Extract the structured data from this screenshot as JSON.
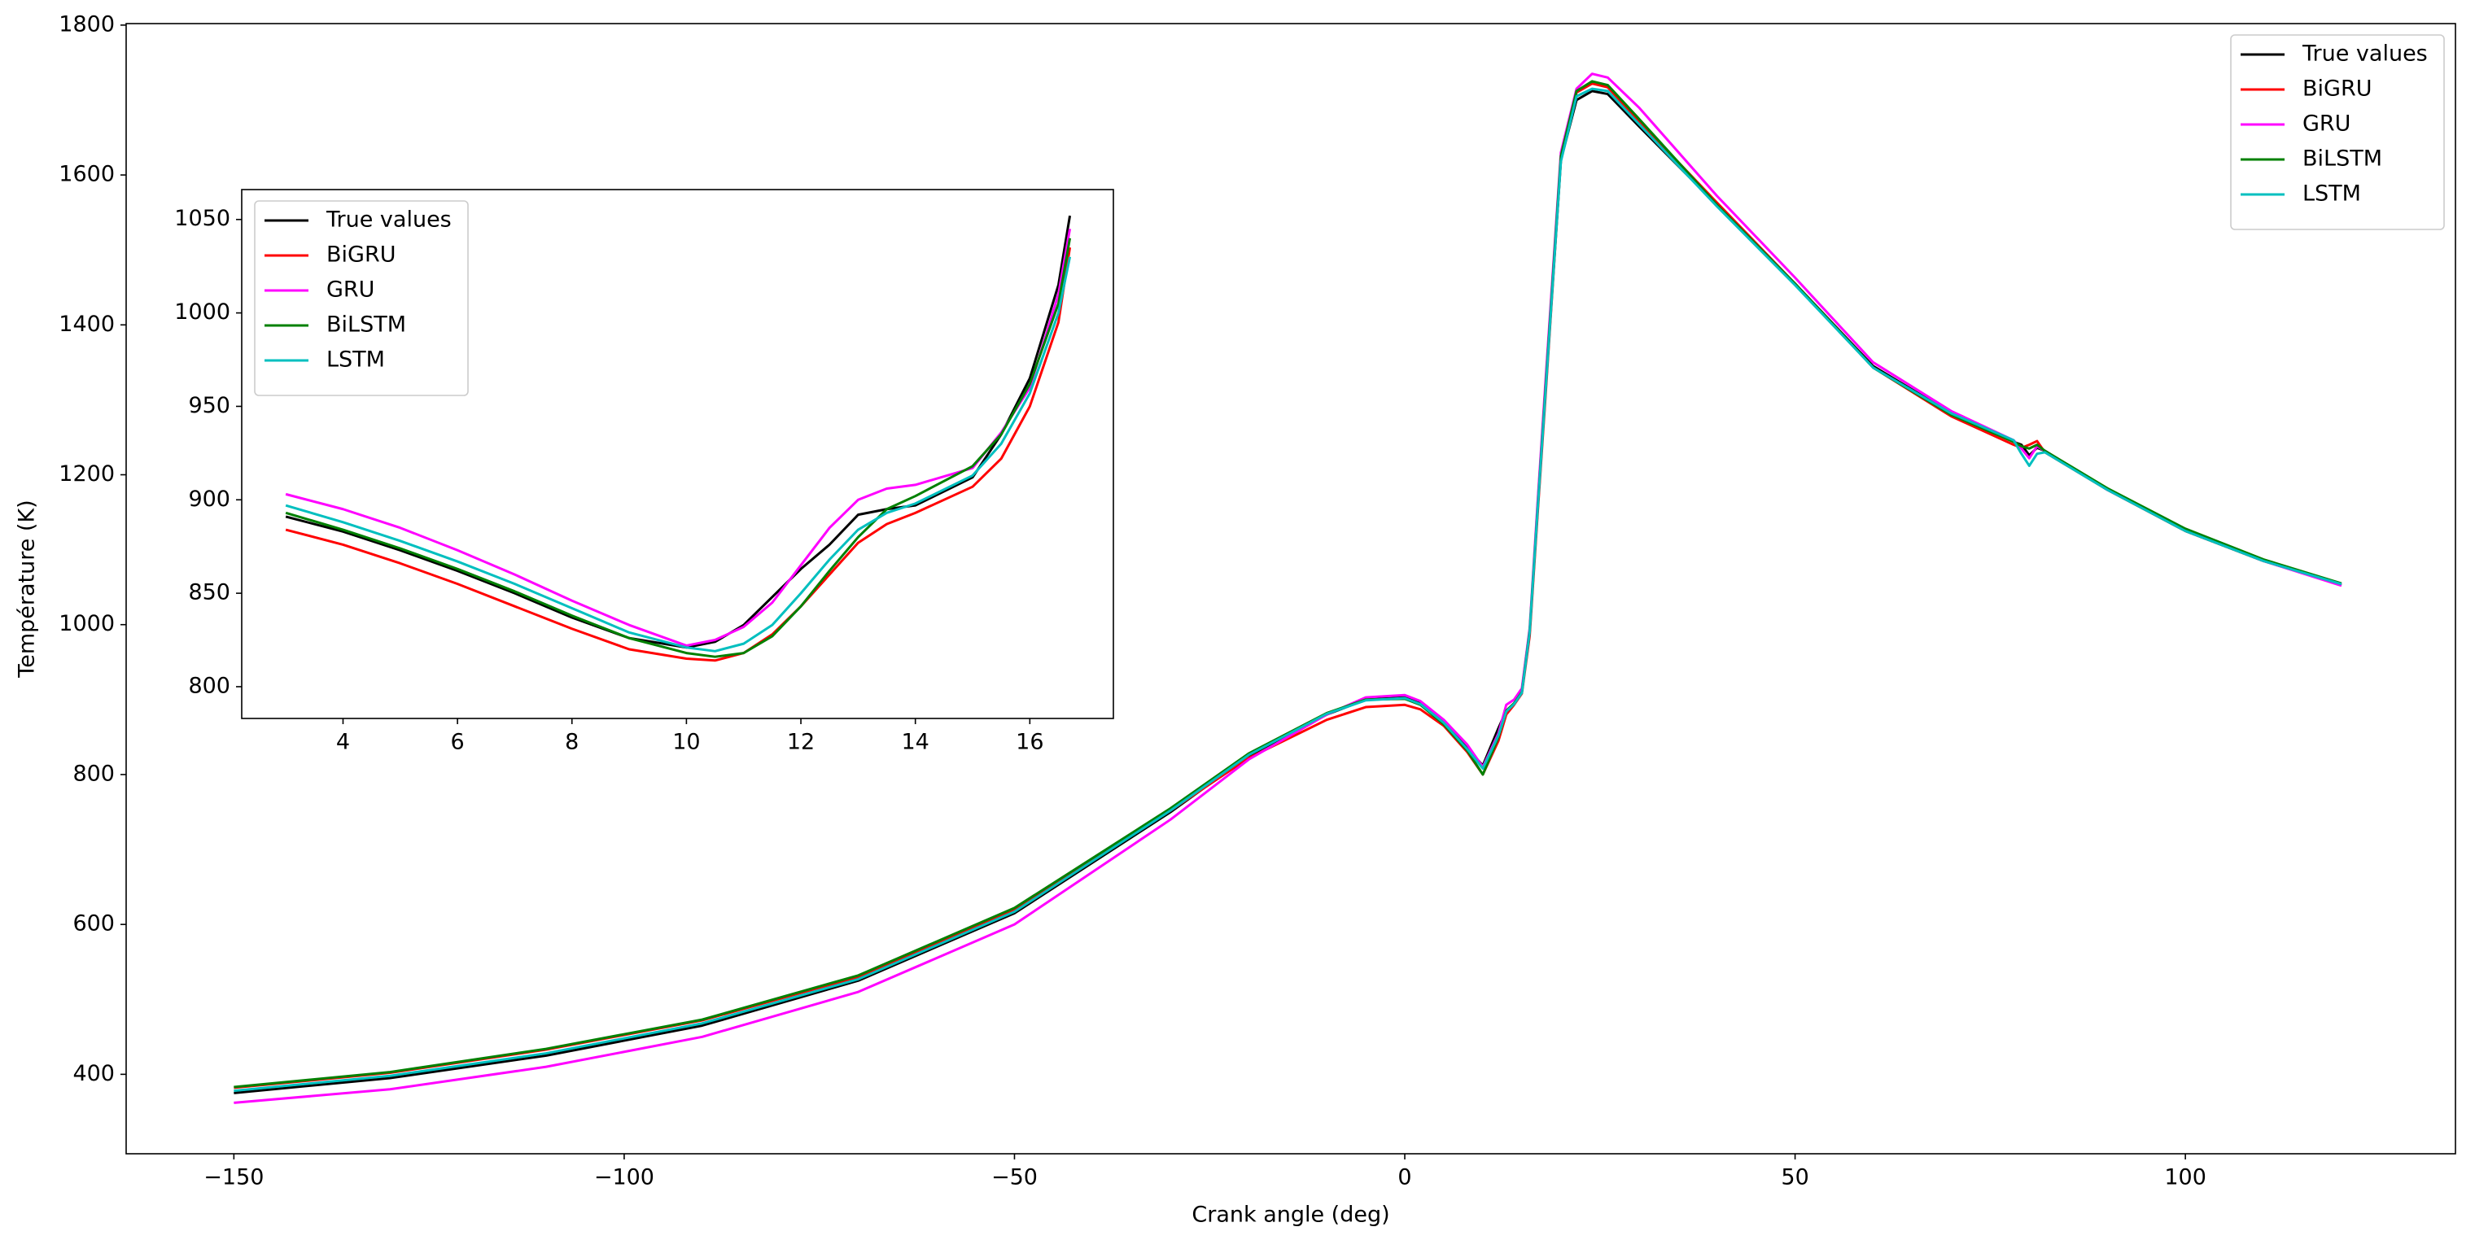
{
  "chart_data": [
    {
      "type": "line",
      "xlabel": "Crank angle (deg)",
      "ylabel": "Température (K)",
      "x": [
        -150,
        -130,
        -110,
        -90,
        -70,
        -50,
        -30,
        -20,
        -10,
        -5,
        0,
        2,
        5,
        8,
        10,
        12,
        13,
        14,
        15,
        16,
        17,
        18,
        20,
        22,
        24,
        26,
        30,
        40,
        50,
        60,
        70,
        78,
        79,
        80,
        81,
        82,
        90,
        100,
        110,
        120
      ],
      "series": [
        {
          "name": "True values",
          "color": "#000000",
          "values": [
            375,
            395,
            425,
            465,
            525,
            615,
            750,
            825,
            880,
            900,
            903,
            895,
            870,
            835,
            812,
            862,
            885,
            895,
            910,
            990,
            1150,
            1307,
            1620,
            1700,
            1712,
            1708,
            1665,
            1560,
            1455,
            1345,
            1282,
            1244,
            1240,
            1226,
            1236,
            1232,
            1180,
            1125,
            1085,
            1053
          ]
        },
        {
          "name": "BiGRU",
          "color": "#ff0000",
          "values": [
            382,
            402,
            433,
            472,
            530,
            620,
            752,
            822,
            873,
            890,
            893,
            887,
            865,
            830,
            800,
            845,
            880,
            893,
            908,
            985,
            1145,
            1300,
            1620,
            1710,
            1722,
            1717,
            1672,
            1563,
            1455,
            1343,
            1278,
            1240,
            1236,
            1240,
            1245,
            1230,
            1180,
            1125,
            1085,
            1053
          ]
        },
        {
          "name": "GRU",
          "color": "#ff00ff",
          "values": [
            362,
            380,
            410,
            450,
            510,
            600,
            740,
            820,
            880,
            903,
            906,
            898,
            873,
            840,
            810,
            855,
            893,
            900,
            915,
            995,
            1160,
            1320,
            1630,
            1715,
            1735,
            1730,
            1690,
            1572,
            1463,
            1350,
            1285,
            1246,
            1235,
            1222,
            1238,
            1232,
            1180,
            1126,
            1085,
            1052
          ]
        },
        {
          "name": "BiLSTM",
          "color": "#008000",
          "values": [
            383,
            403,
            434,
            473,
            532,
            622,
            755,
            828,
            882,
            900,
            901,
            893,
            867,
            832,
            800,
            850,
            885,
            895,
            910,
            992,
            1152,
            1310,
            1625,
            1712,
            1725,
            1720,
            1675,
            1560,
            1455,
            1343,
            1280,
            1244,
            1238,
            1235,
            1240,
            1232,
            1182,
            1128,
            1087,
            1055
          ]
        },
        {
          "name": "LSTM",
          "color": "#00bfbf",
          "values": [
            378,
            398,
            428,
            468,
            527,
            617,
            752,
            826,
            881,
            899,
            902,
            894,
            869,
            834,
            808,
            852,
            884,
            894,
            909,
            990,
            1150,
            1305,
            1618,
            1705,
            1715,
            1712,
            1668,
            1558,
            1453,
            1343,
            1282,
            1246,
            1228,
            1212,
            1228,
            1230,
            1180,
            1125,
            1085,
            1054
          ]
        }
      ],
      "xlim": [
        -163.8,
        134.6
      ],
      "ylim": [
        294,
        1802
      ],
      "xticks": [
        {
          "value": -150,
          "label": "−150"
        },
        {
          "value": -100,
          "label": "−100"
        },
        {
          "value": -50,
          "label": "−50"
        },
        0,
        50,
        100
      ],
      "yticks": [
        400,
        600,
        800,
        1000,
        1200,
        1400,
        1600,
        1800
      ],
      "legend": "upper right"
    },
    {
      "type": "line",
      "x": [
        3,
        4,
        5,
        6,
        7,
        8,
        9,
        10,
        10.5,
        11,
        11.5,
        12,
        12.5,
        13,
        13.5,
        14,
        15,
        15.5,
        16,
        16.5,
        16.7
      ],
      "series": [
        {
          "name": "True values",
          "color": "#000000",
          "values": [
            891,
            883,
            873,
            862,
            850,
            837,
            826,
            821,
            824,
            833,
            848,
            863,
            876,
            892,
            895,
            897,
            912,
            935,
            965,
            1015,
            1052
          ]
        },
        {
          "name": "BiGRU",
          "color": "#ff0000",
          "values": [
            884,
            876,
            866,
            855,
            843,
            831,
            820,
            815,
            814,
            818,
            828,
            843,
            860,
            877,
            887,
            893,
            907,
            922,
            950,
            995,
            1035
          ]
        },
        {
          "name": "GRU",
          "color": "#ff00ff",
          "values": [
            903,
            895,
            885,
            873,
            860,
            846,
            833,
            822,
            825,
            832,
            845,
            865,
            885,
            900,
            906,
            908,
            917,
            936,
            960,
            1010,
            1045
          ]
        },
        {
          "name": "BiLSTM",
          "color": "#008000",
          "values": [
            893,
            884,
            874,
            863,
            851,
            838,
            826,
            818,
            816,
            818,
            827,
            843,
            862,
            880,
            895,
            902,
            918,
            935,
            962,
            1005,
            1040
          ]
        },
        {
          "name": "LSTM",
          "color": "#00bfbf",
          "values": [
            897,
            888,
            878,
            867,
            855,
            842,
            829,
            821,
            819,
            823,
            833,
            850,
            868,
            884,
            893,
            898,
            913,
            930,
            957,
            1000,
            1030
          ]
        }
      ],
      "xlim": [
        2.23,
        17.46
      ],
      "ylim": [
        783,
        1066
      ],
      "xticks": [
        4,
        6,
        8,
        10,
        12,
        14,
        16
      ],
      "yticks": [
        800,
        850,
        900,
        950,
        1000,
        1050
      ],
      "legend": "upper left"
    }
  ]
}
